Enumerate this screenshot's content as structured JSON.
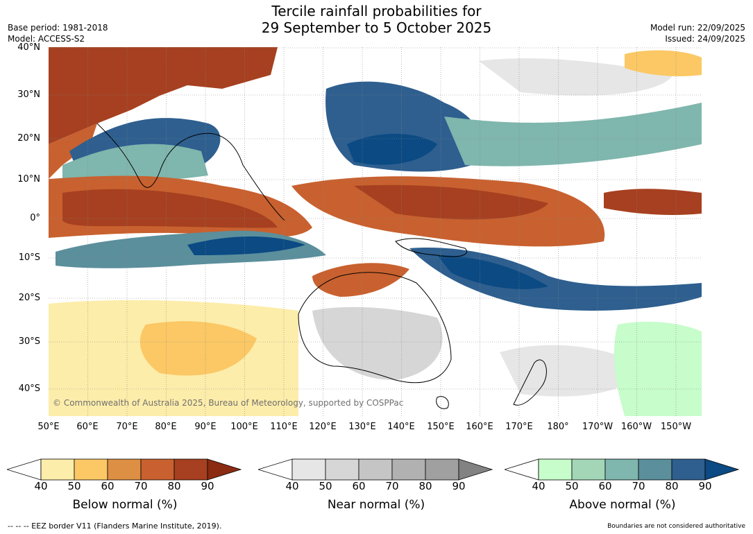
{
  "title_line1": "Tercile rainfall probabilities for",
  "title_line2": "29 September to 5 October 2025",
  "base_period": "Base period: 1981-2018",
  "model": "Model: ACCESS-S2",
  "model_run": "Model run: 22/09/2025",
  "issued": "Issued: 24/09/2025",
  "copyright": "© Commonwealth of Australia 2025, Bureau of Meteorology, supported by COSPPac",
  "lat_labels": [
    "40°N",
    "30°N",
    "20°N",
    "10°N",
    "0°",
    "10°S",
    "20°S",
    "30°S",
    "40°S"
  ],
  "lon_labels": [
    "50°E",
    "60°E",
    "70°E",
    "80°E",
    "90°E",
    "100°E",
    "110°E",
    "120°E",
    "130°E",
    "140°E",
    "150°E",
    "160°E",
    "170°E",
    "180°",
    "170°W",
    "160°W",
    "150°W"
  ],
  "legends": [
    {
      "name": "Below normal (%)",
      "ticks": [
        "40",
        "50",
        "60",
        "70",
        "80",
        "90"
      ],
      "colors": [
        "#ffffff",
        "#fdedaa",
        "#fbc865",
        "#dd8f44",
        "#c8612f",
        "#a64020",
        "#8b2b12"
      ]
    },
    {
      "name": "Near normal (%)",
      "ticks": [
        "40",
        "50",
        "60",
        "70",
        "80",
        "90"
      ],
      "colors": [
        "#ffffff",
        "#e6e6e6",
        "#d6d6d6",
        "#c5c5c5",
        "#b1b1b1",
        "#a0a0a0",
        "#828282"
      ]
    },
    {
      "name": "Above normal (%)",
      "ticks": [
        "40",
        "50",
        "60",
        "70",
        "80",
        "90"
      ],
      "colors": [
        "#ffffff",
        "#c7fccb",
        "#a3d6b7",
        "#7fb6ad",
        "#5b8f9c",
        "#2e5f8f",
        "#0b4a83"
      ]
    }
  ],
  "footer_left": "--  --  -- EEZ border V11 (Flanders Marine Institute, 2019).",
  "footer_right": "Boundaries are not considered authoritative"
}
